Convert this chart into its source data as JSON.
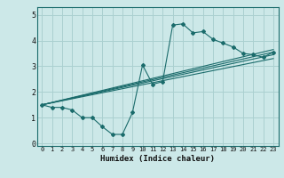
{
  "xlabel": "Humidex (Indice chaleur)",
  "bg_color": "#cce8e8",
  "grid_color": "#aad0d0",
  "line_color": "#1a6b6b",
  "xlim": [
    -0.5,
    23.5
  ],
  "ylim": [
    -0.1,
    5.3
  ],
  "xticks": [
    0,
    1,
    2,
    3,
    4,
    5,
    6,
    7,
    8,
    9,
    10,
    11,
    12,
    13,
    14,
    15,
    16,
    17,
    18,
    19,
    20,
    21,
    22,
    23
  ],
  "yticks": [
    0,
    1,
    2,
    3,
    4,
    5
  ],
  "jagged_x": [
    0,
    1,
    2,
    3,
    4,
    5,
    6,
    7,
    8,
    9,
    10,
    11,
    12,
    13,
    14,
    15,
    16,
    17,
    18,
    19,
    20,
    21,
    22,
    23
  ],
  "jagged_y": [
    1.5,
    1.4,
    1.4,
    1.3,
    1.0,
    1.0,
    0.65,
    0.35,
    0.35,
    1.2,
    3.05,
    2.3,
    2.4,
    4.6,
    4.65,
    4.3,
    4.35,
    4.05,
    3.9,
    3.75,
    3.5,
    3.45,
    3.35,
    3.55
  ],
  "line1_x": [
    0,
    23
  ],
  "line1_y": [
    1.5,
    3.55
  ],
  "line2_x": [
    0,
    23
  ],
  "line2_y": [
    1.5,
    3.3
  ],
  "line3_x": [
    0,
    23
  ],
  "line3_y": [
    1.5,
    3.65
  ],
  "line4_x": [
    0,
    23
  ],
  "line4_y": [
    1.5,
    3.45
  ],
  "xlabel_fontsize": 6.5,
  "xtick_fontsize": 5.0,
  "ytick_fontsize": 6.0
}
